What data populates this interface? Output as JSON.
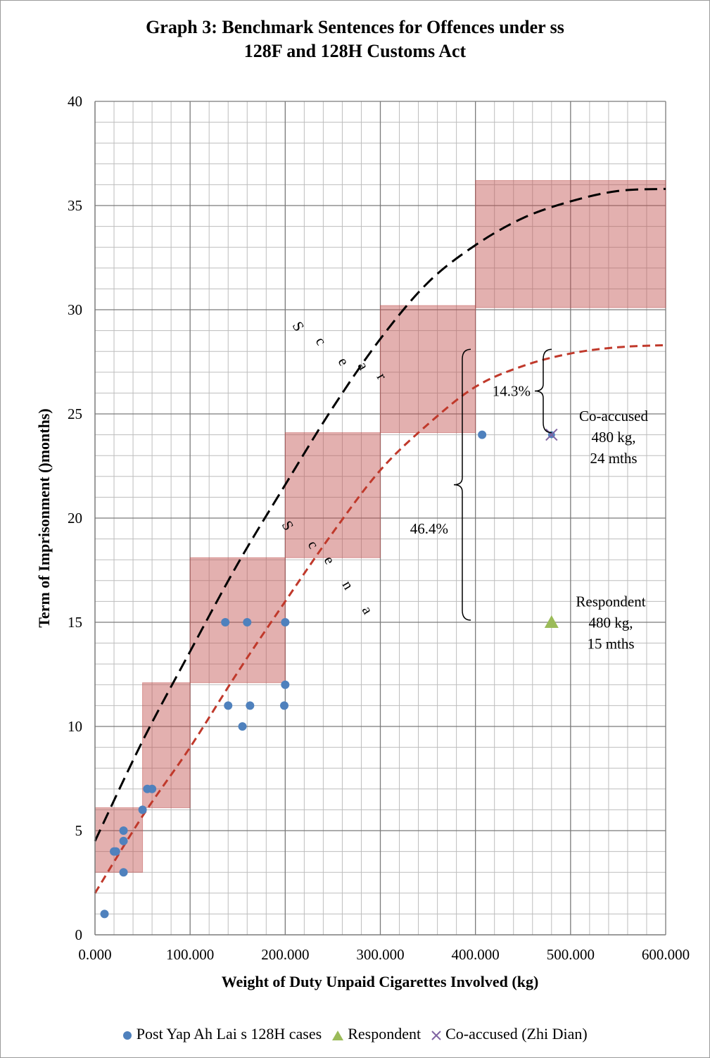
{
  "chart_data": {
    "type": "scatter",
    "title_line1": "Graph 3: Benchmark Sentences for Offences under ss",
    "title_line2": "128F and 128H Customs Act",
    "xlabel": "Weight of Duty Unpaid Cigarettes Involved (kg)",
    "ylabel": "Term of Imprisonment  ()months)",
    "xlim": [
      0,
      600
    ],
    "ylim": [
      0,
      40
    ],
    "x_ticks": [
      "0.000",
      "100.000",
      "200.000",
      "300.000",
      "400.000",
      "500.000",
      "600.000"
    ],
    "y_ticks": [
      "0",
      "5",
      "10",
      "15",
      "20",
      "25",
      "30",
      "35",
      "40"
    ],
    "grid": true,
    "legend_position": "bottom",
    "series": [
      {
        "name": "Post Yap Ah Lai s 128H cases",
        "color": "#4f81bd",
        "marker": "circle",
        "points": [
          [
            10,
            1
          ],
          [
            20,
            4
          ],
          [
            22,
            4
          ],
          [
            30,
            3
          ],
          [
            30,
            4.5
          ],
          [
            30,
            5
          ],
          [
            50,
            6
          ],
          [
            55,
            7
          ],
          [
            60,
            7
          ],
          [
            137,
            15
          ],
          [
            140,
            11
          ],
          [
            155,
            10
          ],
          [
            160,
            15
          ],
          [
            163,
            11
          ],
          [
            199,
            11
          ],
          [
            200,
            12
          ],
          [
            200,
            15
          ],
          [
            407,
            24
          ]
        ]
      },
      {
        "name": "Respondent",
        "color": "#9bbb59",
        "marker": "triangle",
        "points": [
          [
            480,
            15
          ]
        ]
      },
      {
        "name": "Co-accused (Zhi Dian)",
        "color": "#8064a2",
        "marker": "x",
        "points": [
          [
            480,
            24
          ]
        ]
      }
    ],
    "shaded_bands": [
      {
        "x": [
          0,
          50
        ],
        "y": [
          3,
          6.1
        ]
      },
      {
        "x": [
          50,
          100
        ],
        "y": [
          6.1,
          12.1
        ]
      },
      {
        "x": [
          100,
          200
        ],
        "y": [
          12.1,
          18.1
        ]
      },
      {
        "x": [
          200,
          300
        ],
        "y": [
          18.1,
          24.1
        ]
      },
      {
        "x": [
          300,
          400
        ],
        "y": [
          24.1,
          30.2
        ]
      },
      {
        "x": [
          400,
          600
        ],
        "y": [
          30.1,
          36.2
        ]
      }
    ],
    "band_color": "#c0504d",
    "curves": [
      {
        "label": "Sc e a r",
        "color": "#000000",
        "points": [
          [
            0,
            4.5
          ],
          [
            50,
            9.3
          ],
          [
            100,
            13.6
          ],
          [
            150,
            17.8
          ],
          [
            200,
            21.6
          ],
          [
            250,
            25.3
          ],
          [
            300,
            28.6
          ],
          [
            350,
            31.3
          ],
          [
            400,
            33.1
          ],
          [
            450,
            34.4
          ],
          [
            500,
            35.2
          ],
          [
            550,
            35.7
          ],
          [
            600,
            35.8
          ]
        ]
      },
      {
        "label": "Sc e n a",
        "color": "#c0392b",
        "points": [
          [
            0,
            2
          ],
          [
            50,
            5.7
          ],
          [
            100,
            9
          ],
          [
            150,
            12.6
          ],
          [
            200,
            16
          ],
          [
            250,
            19.3
          ],
          [
            300,
            22.3
          ],
          [
            350,
            24.5
          ],
          [
            400,
            26.3
          ],
          [
            450,
            27.3
          ],
          [
            500,
            27.9
          ],
          [
            550,
            28.2
          ],
          [
            600,
            28.3
          ]
        ]
      }
    ],
    "annotations": {
      "pct_46": "46.4%",
      "pct_14": "14.3%",
      "coaccused": [
        "Co-accused",
        "480 kg,",
        "24 mths"
      ],
      "respondent": [
        "Respondent",
        "480 kg,",
        "15 mths"
      ]
    }
  }
}
